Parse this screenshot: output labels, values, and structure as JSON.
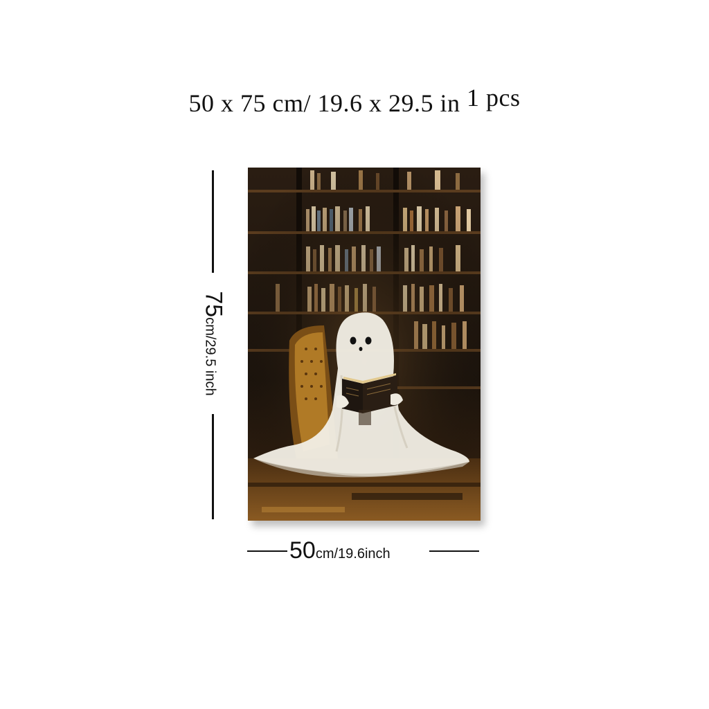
{
  "title": {
    "size_text": "50 x 75 cm/ 19.6 x 29.5 in",
    "count_text": "1 pcs"
  },
  "height_dimension": {
    "value": "75",
    "unit_text": "cm/29.5 inch"
  },
  "width_dimension": {
    "value": "50",
    "unit_text": "cm/19.6inch"
  },
  "colors": {
    "background": "#ffffff",
    "text": "#111111",
    "canvas_dark": "#1a120b",
    "canvas_amber": "#b8741f",
    "ghost": "#f2efe6"
  },
  "artwork": {
    "subject_icon": "ghost-reading-book-in-library"
  }
}
